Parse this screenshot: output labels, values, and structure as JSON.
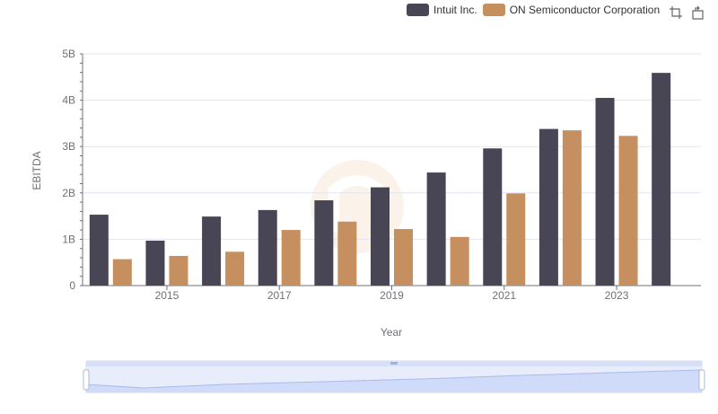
{
  "legend": {
    "items": [
      {
        "name": "Intuit Inc.",
        "color": "#484655"
      },
      {
        "name": "ON Semiconductor Corporation",
        "color": "#c68f5f"
      }
    ]
  },
  "toolbox": {
    "icons": [
      "zoom-icon",
      "restore-icon"
    ]
  },
  "chart_data": {
    "type": "bar",
    "categories": [
      "2014",
      "2015",
      "2016",
      "2017",
      "2018",
      "2019",
      "2020",
      "2021",
      "2022",
      "2023",
      "2024"
    ],
    "x_tick_labels": [
      "2015",
      "2017",
      "2019",
      "2021",
      "2023"
    ],
    "y_tick_labels": [
      "0",
      "1B",
      "2B",
      "3B",
      "4B",
      "5B"
    ],
    "xlabel": "Year",
    "ylabel": "EBITDA",
    "ylim": [
      0,
      5000000000
    ],
    "grid": true,
    "legend_position": "top-right",
    "series": [
      {
        "name": "Intuit Inc.",
        "color": "#484655",
        "values": [
          1530000000,
          970000000,
          1490000000,
          1630000000,
          1840000000,
          2120000000,
          2440000000,
          2960000000,
          3380000000,
          4050000000,
          4590000000
        ]
      },
      {
        "name": "ON Semiconductor Corporation",
        "color": "#c68f5f",
        "values": [
          570000000,
          640000000,
          730000000,
          1200000000,
          1380000000,
          1220000000,
          1050000000,
          1990000000,
          3350000000,
          3230000000,
          null
        ]
      }
    ],
    "dataZoom": {
      "start": 0,
      "end": 100
    }
  }
}
